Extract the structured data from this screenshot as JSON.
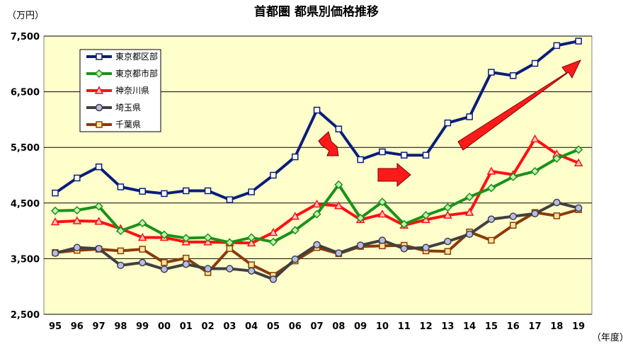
{
  "chart_data": {
    "type": "line",
    "title": "首都圏 都県別価格推移",
    "ylabel": "（万円）",
    "xlabel": "（年度）",
    "categories": [
      "95",
      "96",
      "97",
      "98",
      "99",
      "00",
      "01",
      "02",
      "03",
      "04",
      "05",
      "06",
      "07",
      "08",
      "09",
      "10",
      "11",
      "12",
      "13",
      "14",
      "15",
      "16",
      "17",
      "18",
      "19"
    ],
    "ylim": [
      2500,
      7500
    ],
    "yticks": [
      "7,500",
      "6,500",
      "5,500",
      "4,500",
      "3,500",
      "2,500"
    ],
    "ytick_values": [
      7500,
      6500,
      5500,
      4500,
      3500,
      2500
    ],
    "grid": true,
    "legend_position": "top-left",
    "plot_background": "#ffffcc",
    "series": [
      {
        "name": "東京都区部",
        "color": "#0a1d7a",
        "marker": "square",
        "marker_fill": "#ffffff",
        "values": [
          4680,
          4950,
          5150,
          4790,
          4710,
          4670,
          4720,
          4720,
          4560,
          4700,
          5000,
          5330,
          6170,
          5830,
          5280,
          5420,
          5360,
          5360,
          5940,
          6050,
          6850,
          6790,
          7010,
          7330,
          7410
        ]
      },
      {
        "name": "東京都市部",
        "color": "#199219",
        "marker": "diamond",
        "marker_fill": "#c8f0b4",
        "values": [
          4360,
          4370,
          4440,
          4000,
          4140,
          3930,
          3870,
          3880,
          3790,
          3880,
          3800,
          4010,
          4300,
          4830,
          4230,
          4520,
          4120,
          4280,
          4420,
          4610,
          4770,
          4970,
          5070,
          5300,
          5460
        ]
      },
      {
        "name": "神奈川県",
        "color": "#ff1010",
        "marker": "triangle",
        "marker_fill": "#ffc8c8",
        "values": [
          4160,
          4180,
          4170,
          4040,
          3880,
          3880,
          3800,
          3800,
          3790,
          3780,
          3970,
          4260,
          4480,
          4450,
          4200,
          4300,
          4100,
          4200,
          4280,
          4330,
          5070,
          5010,
          5650,
          5380,
          5220
        ]
      },
      {
        "name": "埼玉県",
        "color": "#404040",
        "marker": "circle",
        "marker_fill": "#b8bce8",
        "values": [
          3600,
          3700,
          3680,
          3380,
          3430,
          3310,
          3400,
          3320,
          3320,
          3280,
          3130,
          3490,
          3750,
          3600,
          3740,
          3830,
          3680,
          3700,
          3810,
          3940,
          4210,
          4260,
          4310,
          4510,
          4410
        ]
      },
      {
        "name": "千葉県",
        "color": "#8b3a0a",
        "marker": "square",
        "marker_fill": "#ffe89a",
        "values": [
          3610,
          3650,
          3670,
          3640,
          3670,
          3430,
          3510,
          3250,
          3680,
          3390,
          3200,
          3460,
          3700,
          3590,
          3720,
          3730,
          3740,
          3640,
          3630,
          3980,
          3830,
          4100,
          4330,
          4270,
          4380
        ]
      }
    ]
  }
}
